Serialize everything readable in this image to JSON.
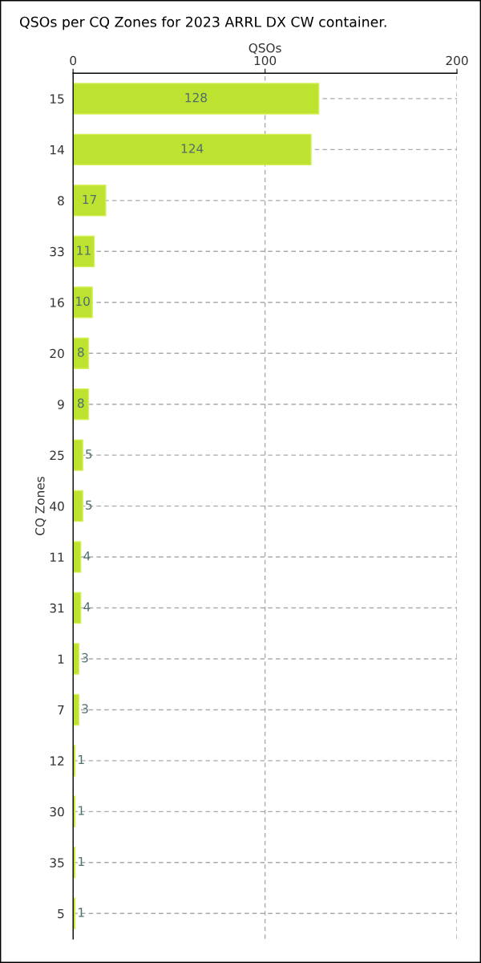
{
  "chart_data": {
    "type": "bar",
    "orientation": "horizontal",
    "title": "QSOs per CQ Zones for 2023 ARRL DX CW container.",
    "xlabel": "QSOs",
    "ylabel": "CQ Zones",
    "categories": [
      "15",
      "14",
      "8",
      "33",
      "16",
      "20",
      "9",
      "25",
      "40",
      "11",
      "31",
      "1",
      "7",
      "12",
      "30",
      "35",
      "5"
    ],
    "values": [
      128,
      124,
      17,
      11,
      10,
      8,
      8,
      5,
      5,
      4,
      4,
      3,
      3,
      1,
      1,
      1,
      1
    ],
    "color": "#bde22f",
    "xlim": [
      0,
      200
    ],
    "xticks": [
      0,
      100,
      200
    ],
    "grid": true,
    "data_labels": true
  }
}
